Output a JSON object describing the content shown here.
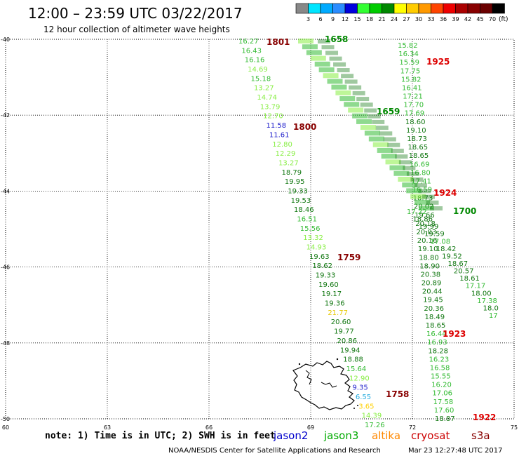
{
  "header": {
    "title": "12:00 – 23:59 UTC 03/22/2017",
    "subtitle": "12 hour collection of altimeter wave heights"
  },
  "legend": {
    "unit": "(ft)",
    "ticks": [
      "3",
      "6",
      "9",
      "12",
      "15",
      "18",
      "21",
      "24",
      "27",
      "30",
      "33",
      "36",
      "39",
      "42",
      "45",
      "70"
    ],
    "colors": [
      "#888888",
      "#00e5ff",
      "#00aaff",
      "#2a8cff",
      "#0000dd",
      "#33ff33",
      "#00cc00",
      "#008800",
      "#ffff00",
      "#ffcc00",
      "#ff9900",
      "#ff4400",
      "#ee0000",
      "#aa0000",
      "#880000",
      "#6a0000",
      "#000000"
    ]
  },
  "axes": {
    "lat_labels": [
      "-40",
      "-42",
      "-44",
      "-46",
      "-48",
      "-50"
    ],
    "lon_labels": [
      "60",
      "63",
      "66",
      "69",
      "72",
      "75"
    ],
    "lat_range": [
      -50,
      -40
    ],
    "lon_range": [
      60,
      75
    ]
  },
  "times": [
    {
      "label": "1801",
      "color": "#880000"
    },
    {
      "label": "1658",
      "color": "#008800"
    },
    {
      "label": "1925",
      "color": "#dd0000"
    },
    {
      "label": "1659",
      "color": "#008800"
    },
    {
      "label": "1800",
      "color": "#880000"
    },
    {
      "label": "1924",
      "color": "#dd0000"
    },
    {
      "label": "1700",
      "color": "#008800"
    },
    {
      "label": "1759",
      "color": "#880000"
    },
    {
      "label": "1923",
      "color": "#dd0000"
    },
    {
      "label": "1758",
      "color": "#880000"
    },
    {
      "label": "1922",
      "color": "#dd0000"
    }
  ],
  "tracks": {
    "jason3_west": {
      "color": "#22aa22",
      "values": [
        "16.27",
        "16.43",
        "16.16",
        "14.69",
        "15.18",
        "13.27",
        "14.74",
        "13.79",
        "12.70",
        "11.58",
        "11.61",
        "12.80",
        "12.29",
        "13.27",
        "18.79",
        "19.95",
        "19.33",
        "19.53",
        "18.46",
        "16.51",
        "15.56",
        "13.32",
        "14.93",
        "19.63",
        "18.62",
        "19.33",
        "19.60",
        "19.17",
        "19.36",
        "21.77",
        "20.60",
        "19.77",
        "20.86",
        "19.94",
        "18.88",
        "15.64",
        "12.90",
        "9.35",
        "6.55",
        "3.65",
        "14.39",
        "17.26"
      ]
    },
    "cryosat_east": {
      "color": "#008800",
      "values": [
        "15.82",
        "16.34",
        "15.59",
        "17.75",
        "15.82",
        "16.41",
        "17.21",
        "17.70",
        "17.69",
        "18.60",
        "19.10",
        "18.73",
        "18.65",
        "18.65",
        "16.69",
        "16.80",
        "17.41",
        "16.59",
        "18.73",
        "20.02",
        "19.66",
        "20.18",
        "20.03",
        "20.16",
        "19.10",
        "18.80",
        "18.90",
        "20.38",
        "20.89",
        "20.44",
        "19.45",
        "20.36",
        "18.49",
        "18.65",
        "16.44",
        "16.93",
        "18.28",
        "16.23",
        "16.58",
        "15.55",
        "16.20",
        "17.06",
        "17.58",
        "17.60",
        "18.87"
      ]
    },
    "jason3_east_diag": {
      "color": "#008800",
      "values": [
        "17.22",
        "18.86",
        "19.99",
        "19.59",
        "17.08",
        "18.42",
        "19.52",
        "18.67",
        "20.57",
        "18.61",
        "17.17",
        "18.00",
        "17.38",
        "18.0",
        "17"
      ]
    }
  },
  "satellites": [
    {
      "name": "jason2",
      "color": "#0000cc"
    },
    {
      "name": "jason3",
      "color": "#00aa00"
    },
    {
      "name": "altika",
      "color": "#ff8800"
    },
    {
      "name": "cryosat",
      "color": "#cc0000"
    },
    {
      "name": "s3a",
      "color": "#880000"
    }
  ],
  "note": "note: 1) Time is in UTC; 2) SWH is in feet",
  "footer": {
    "credit": "NOAA/NESDIS Center for Satellite Applications and Research",
    "timestamp": "Mar 23 12:27:48 UTC 2017"
  }
}
